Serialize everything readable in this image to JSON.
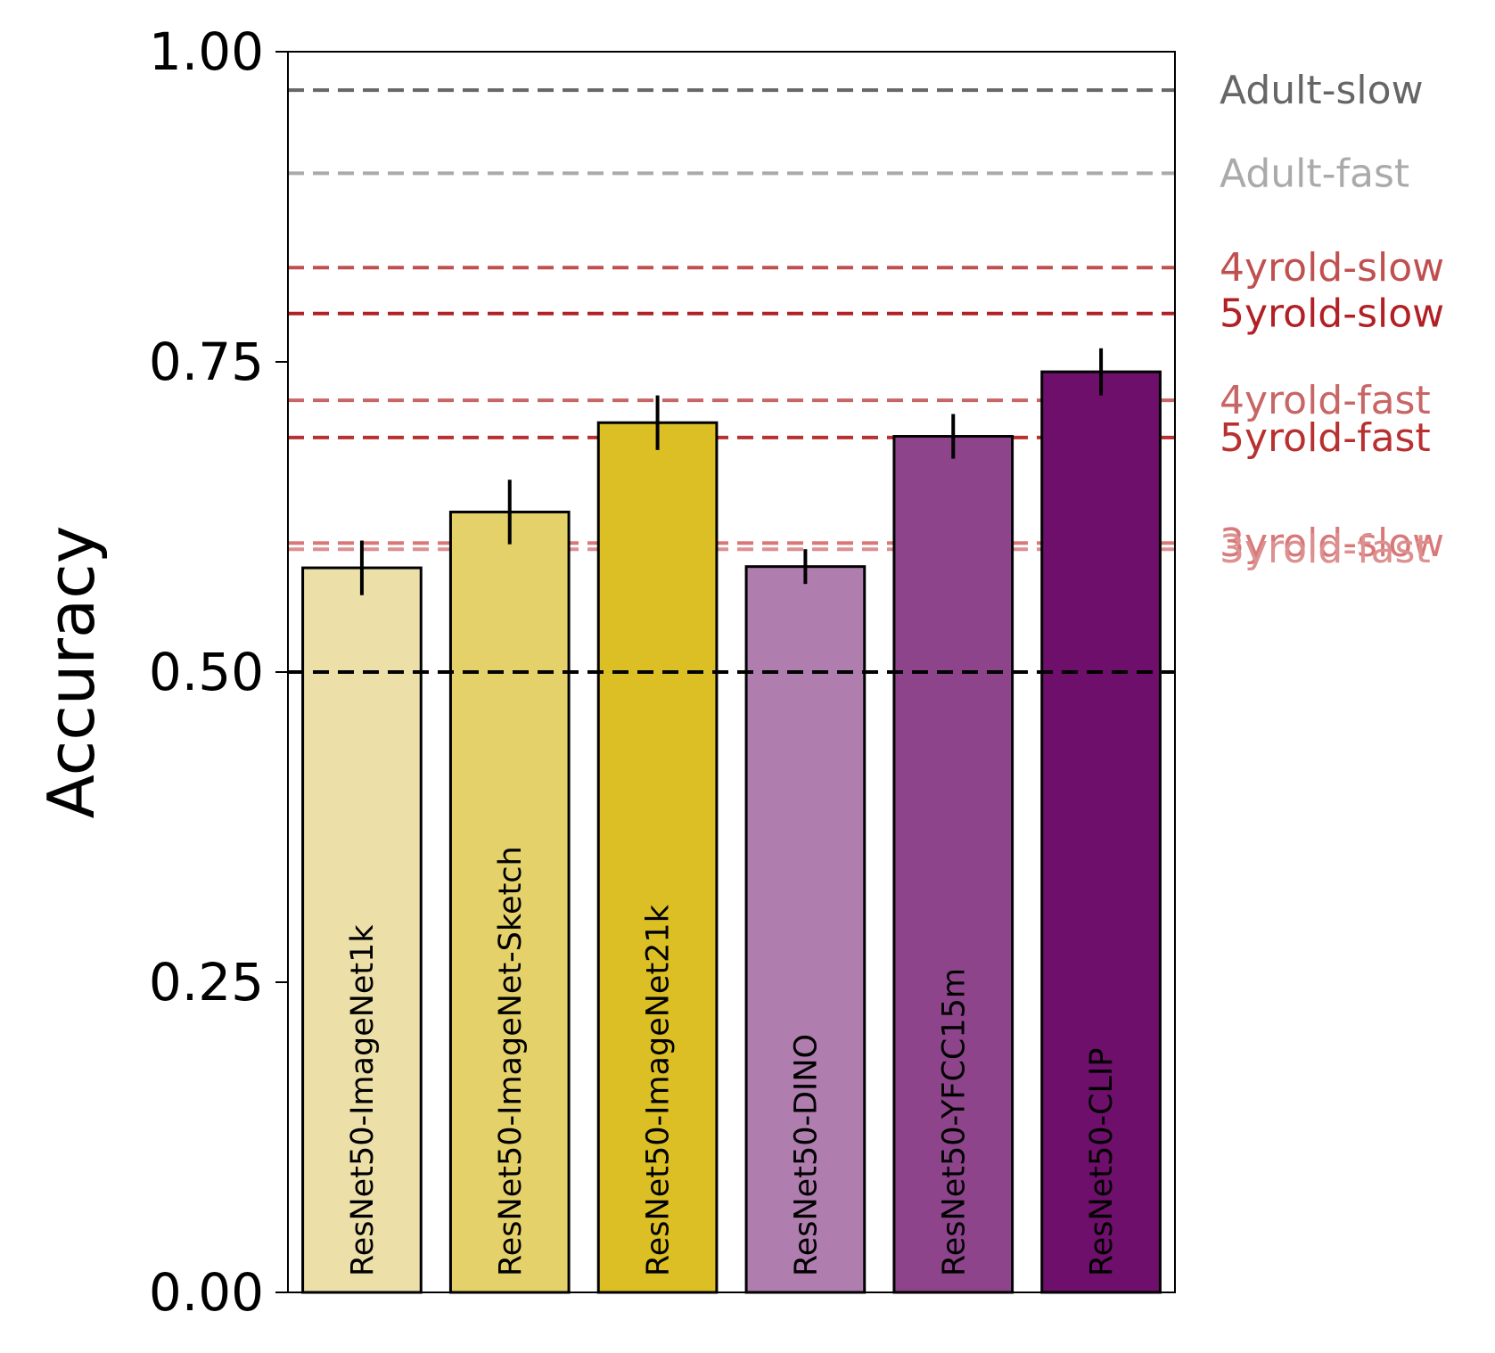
{
  "chart_data": {
    "type": "bar",
    "ylabel": "Accuracy",
    "ylim": [
      0,
      1
    ],
    "yticks": [
      {
        "value": 0,
        "label": "0.00"
      },
      {
        "value": 0.25,
        "label": "0.25"
      },
      {
        "value": 0.5,
        "label": "0.50"
      },
      {
        "value": 0.75,
        "label": "0.75"
      },
      {
        "value": 1,
        "label": "1.00"
      }
    ],
    "categories": [
      "ResNet50-ImageNet1k",
      "ResNet50-ImageNet-Sketch",
      "ResNet50-ImageNet21k",
      "ResNet50-DINO",
      "ResNet50-YFCC15m",
      "ResNet50-CLIP"
    ],
    "values": [
      0.584,
      0.629,
      0.701,
      0.585,
      0.69,
      0.742
    ],
    "errors": [
      0.022,
      0.026,
      0.022,
      0.014,
      0.018,
      0.019
    ],
    "bar_colors": [
      "#ecdfa8",
      "#e5d169",
      "#dcbf24",
      "#b07daf",
      "#8d448b",
      "#6d0f6b"
    ],
    "chance_line": 0.5,
    "reference_lines": [
      {
        "label": "Adult-slow",
        "value": 0.969,
        "color": "#666666"
      },
      {
        "label": "Adult-fast",
        "value": 0.902,
        "color": "#aaaaaa"
      },
      {
        "label": "4yrold-slow",
        "value": 0.826,
        "color": "#c05050"
      },
      {
        "label": "5yrold-slow",
        "value": 0.789,
        "color": "#b02025"
      },
      {
        "label": "4yrold-fast",
        "value": 0.719,
        "color": "#c86666"
      },
      {
        "label": "5yrold-fast",
        "value": 0.689,
        "color": "#b83030"
      },
      {
        "label": "3yrold-slow",
        "value": 0.604,
        "color": "#d87878"
      },
      {
        "label": "3yrold-fast",
        "value": 0.599,
        "color": "#dc9090"
      }
    ]
  }
}
